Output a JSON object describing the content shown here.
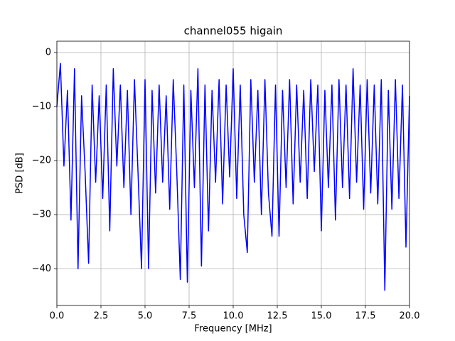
{
  "chart_data": {
    "type": "line",
    "title": "channel055 higain",
    "x_label": "Frequency [MHz]",
    "y_label": "PSD [dB]",
    "x": [
      0,
      0.2,
      0.4,
      0.6,
      0.8,
      1.0,
      1.2,
      1.4,
      1.6,
      1.8,
      2.0,
      2.2,
      2.4,
      2.6,
      2.8,
      3.0,
      3.2,
      3.4,
      3.6,
      3.8,
      4.0,
      4.2,
      4.4,
      4.6,
      4.8,
      5.0,
      5.2,
      5.4,
      5.6,
      5.8,
      6.0,
      6.2,
      6.4,
      6.6,
      6.8,
      7.0,
      7.2,
      7.4,
      7.6,
      7.8,
      8.0,
      8.2,
      8.4,
      8.6,
      8.8,
      9.0,
      9.2,
      9.4,
      9.6,
      9.8,
      10.0,
      10.2,
      10.4,
      10.6,
      10.8,
      11.0,
      11.2,
      11.4,
      11.6,
      11.8,
      12.0,
      12.2,
      12.4,
      12.6,
      12.8,
      13.0,
      13.2,
      13.4,
      13.6,
      13.8,
      14.0,
      14.2,
      14.4,
      14.6,
      14.8,
      15.0,
      15.2,
      15.4,
      15.6,
      15.8,
      16.0,
      16.2,
      16.4,
      16.6,
      16.8,
      17.0,
      17.2,
      17.4,
      17.6,
      17.8,
      18.0,
      18.2,
      18.4,
      18.6,
      18.8,
      19.0,
      19.2,
      19.4,
      19.6,
      19.8,
      20.0
    ],
    "series": [
      {
        "color": "#0000ff",
        "values": [
          -10,
          -2,
          -21,
          -7,
          -31,
          -3,
          -40,
          -8,
          -22,
          -39,
          -6,
          -24,
          -8,
          -27,
          -6,
          -33,
          -3,
          -21,
          -6,
          -25,
          -7,
          -30,
          -5,
          -22,
          -40,
          -5,
          -40,
          -7,
          -26,
          -6,
          -24,
          -8,
          -29,
          -5,
          -22,
          -42,
          -6,
          -42.5,
          -7,
          -25,
          -3,
          -39.5,
          -6,
          -33,
          -7,
          -24,
          -5,
          -28,
          -6,
          -23,
          -3,
          -27,
          -6,
          -30,
          -37,
          -5,
          -24,
          -7,
          -30,
          -5,
          -26,
          -34,
          -6,
          -34,
          -7,
          -25,
          -5,
          -28,
          -6,
          -24,
          -7,
          -27,
          -5,
          -22,
          -6,
          -33,
          -7,
          -25,
          -6,
          -31,
          -5,
          -25,
          -6,
          -27,
          -3,
          -24,
          -6,
          -29,
          -5,
          -26,
          -6,
          -28,
          -5,
          -44,
          -7,
          -29,
          -5,
          -27,
          -6,
          -36,
          -8
        ]
      }
    ],
    "xlim": [
      0,
      20
    ],
    "ylim": [
      -46.8,
      2.1
    ],
    "xticks": [
      {
        "value": 0,
        "label": "0.0"
      },
      2.5,
      {
        "value": 5,
        "label": "5.0"
      },
      7.5,
      {
        "value": 10,
        "label": "10.0"
      },
      12.5,
      {
        "value": 15,
        "label": "15.0"
      },
      17.5,
      {
        "value": 20,
        "label": "20.0"
      }
    ],
    "yticks": [
      {
        "value": -40,
        "label": "−40"
      },
      {
        "value": -30,
        "label": "−30"
      },
      {
        "value": -20,
        "label": "−20"
      },
      {
        "value": -10,
        "label": "−10"
      },
      0
    ],
    "grid": true
  }
}
